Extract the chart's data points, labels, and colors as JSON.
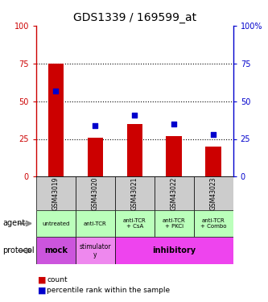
{
  "title": "GDS1339 / 169599_at",
  "samples": [
    "GSM43019",
    "GSM43020",
    "GSM43021",
    "GSM43022",
    "GSM43023"
  ],
  "count_values": [
    75,
    26,
    35,
    27,
    20
  ],
  "percentile_values": [
    57,
    34,
    41,
    35,
    28
  ],
  "ylim": [
    0,
    100
  ],
  "yticks": [
    0,
    25,
    50,
    75,
    100
  ],
  "bar_color": "#cc0000",
  "dot_color": "#0000cc",
  "agent_labels": [
    "untreated",
    "anti-TCR",
    "anti-TCR\n+ CsA",
    "anti-TCR\n+ PKCi",
    "anti-TCR\n+ Combo"
  ],
  "agent_bg": "#bbffbb",
  "sample_bg": "#cccccc",
  "protocol_mock_bg": "#cc55dd",
  "protocol_stim_bg": "#ee88ee",
  "protocol_inhib_bg": "#ee44ee",
  "title_fontsize": 10,
  "tick_fontsize": 7,
  "bar_width": 0.4
}
